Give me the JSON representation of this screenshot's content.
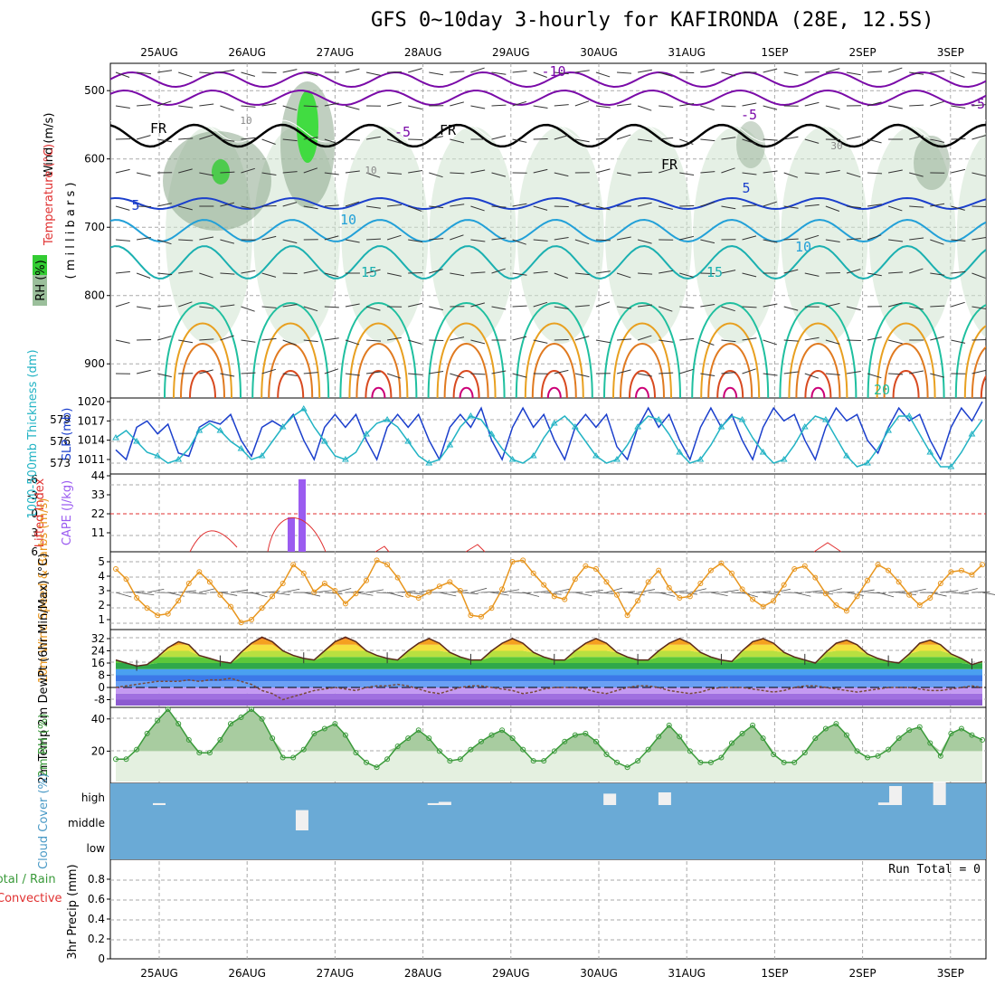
{
  "title": "GFS 0~10day 3-hourly for KAFIRONDA (28E, 12.5S)",
  "dates": [
    "25AUG",
    "26AUG",
    "27AUG",
    "28AUG",
    "29AUG",
    "30AUG",
    "31AUG",
    "1SEP",
    "2SEP",
    "3SEP"
  ],
  "colors": {
    "blue": "#1b3fcc",
    "cyan": "#22b3c4",
    "purple": "#9b5cf0",
    "orange": "#e8961e",
    "green": "#3a9a3a",
    "cloud": "#6aaad6",
    "purpleLine": "#7a0aa8",
    "red": "#e03030"
  },
  "chart_data": [
    {
      "type": "contour",
      "ylabel_wind": "Wind (m/s)",
      "ylabel_temp": "Temperature (°C)",
      "ylabel_rh": "RH (%)",
      "ylabel_mb": "( m i l l i b a r s )",
      "yticks": [
        500,
        600,
        700,
        800,
        900
      ],
      "ylim": [
        950,
        460
      ],
      "contour_labels": [
        "-10",
        "-5",
        "-5",
        "-5",
        "FR",
        "FR",
        "FR",
        "5",
        "5",
        "10",
        "10",
        "15",
        "15",
        "20",
        "10",
        "10",
        "30"
      ]
    },
    {
      "type": "line",
      "ylabel_left": "1000-500mb Thickness (dm)",
      "ylabel_right": "SLP (mb)",
      "left_ticks": [
        573,
        576,
        579
      ],
      "right_ticks": [
        1011,
        1014,
        1017,
        1020
      ],
      "series": [
        {
          "name": "SLP (mb)",
          "color": "#1b3fcc",
          "values": [
            1012.5,
            1011,
            1016,
            1017,
            1015,
            1016.5,
            1012,
            1011.5,
            1016,
            1017,
            1016.5,
            1018,
            1014,
            1011.5,
            1016,
            1017,
            1016,
            1018,
            1014,
            1011,
            1016,
            1018,
            1016,
            1018,
            1014,
            1011,
            1016,
            1018,
            1016,
            1018,
            1014,
            1011,
            1016,
            1018,
            1016,
            1019,
            1014,
            1011,
            1016,
            1019,
            1016,
            1018,
            1014,
            1011,
            1016,
            1018,
            1016,
            1018,
            1013,
            1011,
            1016,
            1019,
            1016,
            1018,
            1014,
            1011,
            1016,
            1019,
            1016,
            1018,
            1014,
            1011,
            1016,
            1019,
            1017,
            1018,
            1014,
            1011,
            1016,
            1019,
            1017,
            1018,
            1014,
            1012,
            1016,
            1019,
            1017,
            1018,
            1014,
            1011,
            1016,
            1019,
            1017,
            1020
          ]
        },
        {
          "name": "1000-500mb Thickness (dm)",
          "color": "#22b3c4",
          "values": [
            576.5,
            577.5,
            576,
            574.5,
            574,
            573,
            573.5,
            575,
            577.5,
            578.5,
            577.5,
            576,
            575,
            573.5,
            574,
            576,
            578,
            579.5,
            580.5,
            578,
            576,
            574,
            573.5,
            574.5,
            577,
            578.5,
            579,
            578,
            576,
            574,
            573,
            573.5,
            575.5,
            578,
            579.5,
            579,
            577,
            575,
            573.5,
            573,
            574,
            576.5,
            578.5,
            579.5,
            578,
            576,
            574,
            573,
            573.5,
            575.5,
            578,
            579.5,
            579,
            577,
            574.5,
            573,
            573.5,
            575.5,
            578,
            579.5,
            579,
            576.5,
            574.5,
            573,
            573.5,
            575.5,
            578,
            579.5,
            579,
            576.5,
            574,
            572.5,
            573,
            575,
            577.5,
            579.5,
            579.5,
            577,
            574.5,
            572.5,
            572.5,
            574.5,
            577,
            579
          ]
        }
      ]
    },
    {
      "type": "bar",
      "ylabel_left": "Lifted Index",
      "ylabel_right": "CAPE (J/kg)",
      "left_ticks": [
        "-6",
        "-3",
        "0",
        "3",
        "6"
      ],
      "right_ticks": [
        "44",
        "33",
        "22",
        "11"
      ],
      "series": [
        {
          "name": "CAPE (J/kg)",
          "values": [
            {
              "x": "26AUG 12Z",
              "y": 20
            },
            {
              "x": "26AUG 15Z",
              "y": 42
            }
          ]
        },
        {
          "name": "Lifted Index",
          "values": []
        }
      ]
    },
    {
      "type": "line",
      "ylabel": "10m Wind Speed & Barbs (m/s)",
      "yticks": [
        1,
        2,
        3,
        4,
        5
      ],
      "series": [
        {
          "name": "10m Wind Speed (m/s)",
          "color": "#e8961e",
          "values": [
            4.5,
            3.8,
            2.5,
            1.8,
            1.3,
            1.4,
            2.3,
            3.5,
            4.3,
            3.6,
            2.7,
            1.9,
            0.8,
            1.0,
            1.8,
            2.6,
            3.5,
            4.8,
            4.2,
            2.9,
            3.5,
            3.0,
            2.1,
            2.8,
            3.7,
            5.1,
            4.8,
            3.9,
            2.7,
            2.5,
            2.9,
            3.3,
            3.6,
            3.0,
            1.3,
            1.2,
            1.8,
            3.1,
            5.0,
            5.1,
            4.2,
            3.4,
            2.6,
            2.4,
            3.8,
            4.7,
            4.5,
            3.6,
            2.7,
            1.3,
            2.3,
            3.6,
            4.4,
            3.2,
            2.5,
            2.6,
            3.5,
            4.4,
            4.9,
            4.2,
            3.1,
            2.4,
            1.9,
            2.3,
            3.4,
            4.5,
            4.7,
            3.9,
            2.8,
            2.0,
            1.6,
            2.6,
            3.7,
            4.8,
            4.4,
            3.6,
            2.7,
            2.0,
            2.5,
            3.5,
            4.3,
            4.4,
            4.1,
            4.8
          ]
        }
      ]
    },
    {
      "type": "area",
      "ylabel": "2m Temp 2m DewPt (6hr Min/Max) (°C)",
      "yticks": [
        -8,
        0,
        8,
        16,
        24,
        32
      ],
      "series": [
        {
          "name": "2m Temp",
          "values": [
            18,
            16,
            14,
            15,
            20,
            26,
            30,
            28,
            21,
            19,
            17,
            16,
            23,
            29,
            33,
            30,
            24,
            21,
            19,
            18,
            24,
            30,
            33,
            30,
            24,
            21,
            19,
            18,
            24,
            29,
            32,
            29,
            23,
            20,
            18,
            18,
            24,
            29,
            32,
            29,
            23,
            20,
            18,
            18,
            24,
            29,
            32,
            29,
            23,
            20,
            18,
            18,
            24,
            29,
            32,
            29,
            23,
            20,
            18,
            17,
            24,
            30,
            32,
            29,
            23,
            20,
            18,
            16,
            23,
            29,
            31,
            28,
            22,
            19,
            17,
            16,
            22,
            29,
            31,
            28,
            22,
            19,
            15,
            17
          ]
        },
        {
          "name": "2m DewPt",
          "values": [
            0,
            1,
            2,
            3,
            4,
            4,
            4,
            5,
            4,
            5,
            5,
            6,
            4,
            2,
            -2,
            -4,
            -8,
            -6,
            -4,
            -2,
            -1,
            0,
            -1,
            -2,
            0,
            1,
            1,
            2,
            1,
            -1,
            -3,
            -4,
            -2,
            0,
            1,
            1,
            0,
            -1,
            -2,
            -4,
            -3,
            -1,
            0,
            0,
            0,
            -1,
            -3,
            -4,
            -2,
            0,
            1,
            1,
            0,
            -2,
            -3,
            -4,
            -3,
            -1,
            0,
            0,
            0,
            -1,
            -2,
            -3,
            -2,
            0,
            1,
            1,
            0,
            -1,
            -2,
            -3,
            -2,
            -1,
            0,
            0,
            0,
            -1,
            -2,
            -2,
            -1,
            0,
            1,
            0
          ]
        }
      ]
    },
    {
      "type": "area",
      "ylabel": "2m RH (%)",
      "yticks": [
        20,
        40
      ],
      "series": [
        {
          "name": "2m RH (%)",
          "values": [
            15,
            15,
            21,
            31,
            39,
            46,
            37,
            27,
            19,
            19,
            27,
            37,
            41,
            46,
            40,
            28,
            16,
            16,
            21,
            31,
            34,
            37,
            30,
            19,
            13,
            10,
            15,
            23,
            28,
            33,
            28,
            20,
            14,
            15,
            21,
            26,
            30,
            33,
            28,
            21,
            14,
            14,
            20,
            26,
            30,
            31,
            26,
            18,
            13,
            10,
            14,
            21,
            29,
            36,
            29,
            20,
            13,
            13,
            16,
            25,
            31,
            36,
            28,
            18,
            13,
            13,
            19,
            28,
            34,
            37,
            30,
            20,
            16,
            17,
            21,
            28,
            33,
            35,
            25,
            17,
            31,
            34,
            30,
            27
          ]
        }
      ]
    },
    {
      "type": "bar",
      "ylabel": "Cloud Cover (%)",
      "levels": [
        "high",
        "middle",
        "low"
      ],
      "series": [
        {
          "name": "high",
          "values": [
            {
              "x": "25AUG 00Z",
              "y": 3
            },
            {
              "x": "28AUG 03Z",
              "y": 3
            },
            {
              "x": "28AUG 06Z",
              "y": 5
            },
            {
              "x": "30AUG 03Z",
              "y": 18
            },
            {
              "x": "30AUG 18Z",
              "y": 20
            },
            {
              "x": "2SEP 06Z",
              "y": 4
            },
            {
              "x": "2SEP 09Z",
              "y": 30
            },
            {
              "x": "2SEP 21Z",
              "y": 36
            }
          ]
        },
        {
          "name": "middle",
          "values": [
            {
              "x": "26AUG 15Z",
              "y": 32
            }
          ]
        },
        {
          "name": "low",
          "values": []
        }
      ]
    },
    {
      "type": "bar",
      "ylabel": "3hr Precip (mm)",
      "ylabel_total": "Total / Rain",
      "ylabel_conv": "Convective",
      "yticks": [
        "0",
        "0.2",
        "0.4",
        "0.6",
        "0.8"
      ],
      "run_total": "Run Total = 0",
      "series": [
        {
          "name": "3hr Precip (mm)",
          "values": []
        }
      ]
    }
  ]
}
